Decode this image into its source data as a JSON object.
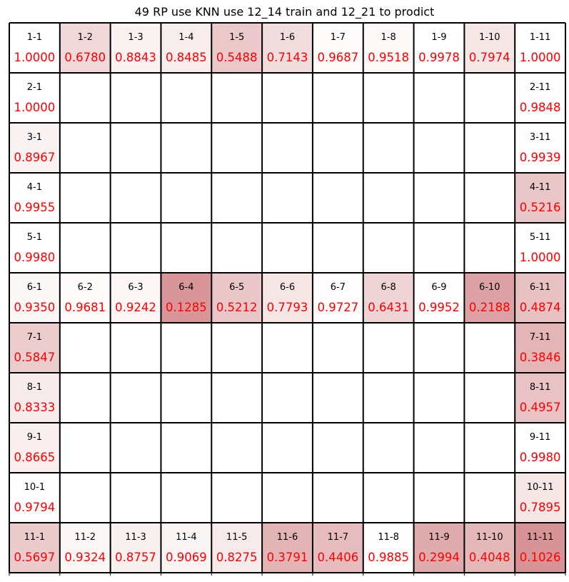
{
  "chart_data": {
    "type": "heatmap",
    "title": "49 RP use KNN use 12_14 train and 12_21 to prodict",
    "rows": 11,
    "cols": 11,
    "colormap": "Reds",
    "value_color": "#ff0000",
    "label_color": "#000000",
    "cells": [
      {
        "label": "1-1",
        "value": 1.0,
        "text": "1.0000"
      },
      {
        "label": "1-2",
        "value": 0.678,
        "text": "0.6780"
      },
      {
        "label": "1-3",
        "value": 0.8843,
        "text": "0.8843"
      },
      {
        "label": "1-4",
        "value": 0.8485,
        "text": "0.8485"
      },
      {
        "label": "1-5",
        "value": 0.5488,
        "text": "0.5488"
      },
      {
        "label": "1-6",
        "value": 0.7143,
        "text": "0.7143"
      },
      {
        "label": "1-7",
        "value": 0.9687,
        "text": "0.9687"
      },
      {
        "label": "1-8",
        "value": 0.9518,
        "text": "0.9518"
      },
      {
        "label": "1-9",
        "value": 0.9978,
        "text": "0.9978"
      },
      {
        "label": "1-10",
        "value": 0.7974,
        "text": "0.7974"
      },
      {
        "label": "1-11",
        "value": 1.0,
        "text": "1.0000"
      },
      {
        "label": "2-1",
        "value": 1.0,
        "text": "1.0000"
      },
      {
        "label": "2-11",
        "value": 0.9848,
        "text": "0.9848"
      },
      {
        "label": "3-1",
        "value": 0.8967,
        "text": "0.8967"
      },
      {
        "label": "3-11",
        "value": 0.9939,
        "text": "0.9939"
      },
      {
        "label": "4-1",
        "value": 0.9955,
        "text": "0.9955"
      },
      {
        "label": "4-11",
        "value": 0.5216,
        "text": "0.5216"
      },
      {
        "label": "5-1",
        "value": 0.998,
        "text": "0.9980"
      },
      {
        "label": "5-11",
        "value": 1.0,
        "text": "1.0000"
      },
      {
        "label": "6-1",
        "value": 0.935,
        "text": "0.9350"
      },
      {
        "label": "6-2",
        "value": 0.9681,
        "text": "0.9681"
      },
      {
        "label": "6-3",
        "value": 0.9242,
        "text": "0.9242"
      },
      {
        "label": "6-4",
        "value": 0.1285,
        "text": "0.1285"
      },
      {
        "label": "6-5",
        "value": 0.5212,
        "text": "0.5212"
      },
      {
        "label": "6-6",
        "value": 0.7793,
        "text": "0.7793"
      },
      {
        "label": "6-7",
        "value": 0.9727,
        "text": "0.9727"
      },
      {
        "label": "6-8",
        "value": 0.6431,
        "text": "0.6431"
      },
      {
        "label": "6-9",
        "value": 0.9952,
        "text": "0.9952"
      },
      {
        "label": "6-10",
        "value": 0.2188,
        "text": "0.2188"
      },
      {
        "label": "6-11",
        "value": 0.4874,
        "text": "0.4874"
      },
      {
        "label": "7-1",
        "value": 0.5847,
        "text": "0.5847"
      },
      {
        "label": "7-11",
        "value": 0.3846,
        "text": "0.3846"
      },
      {
        "label": "8-1",
        "value": 0.8333,
        "text": "0.8333"
      },
      {
        "label": "8-11",
        "value": 0.4957,
        "text": "0.4957"
      },
      {
        "label": "9-1",
        "value": 0.8665,
        "text": "0.8665"
      },
      {
        "label": "9-11",
        "value": 0.998,
        "text": "0.9980"
      },
      {
        "label": "10-1",
        "value": 0.9794,
        "text": "0.9794"
      },
      {
        "label": "10-11",
        "value": 0.7895,
        "text": "0.7895"
      },
      {
        "label": "11-1",
        "value": 0.5697,
        "text": "0.5697"
      },
      {
        "label": "11-2",
        "value": 0.9324,
        "text": "0.9324"
      },
      {
        "label": "11-3",
        "value": 0.8757,
        "text": "0.8757"
      },
      {
        "label": "11-4",
        "value": 0.9069,
        "text": "0.9069"
      },
      {
        "label": "11-5",
        "value": 0.8275,
        "text": "0.8275"
      },
      {
        "label": "11-6",
        "value": 0.3791,
        "text": "0.3791"
      },
      {
        "label": "11-7",
        "value": 0.4406,
        "text": "0.4406"
      },
      {
        "label": "11-8",
        "value": 0.9885,
        "text": "0.9885"
      },
      {
        "label": "11-9",
        "value": 0.2994,
        "text": "0.2994"
      },
      {
        "label": "11-10",
        "value": 0.4048,
        "text": "0.4048"
      },
      {
        "label": "11-11",
        "value": 0.1026,
        "text": "0.1026"
      }
    ]
  }
}
